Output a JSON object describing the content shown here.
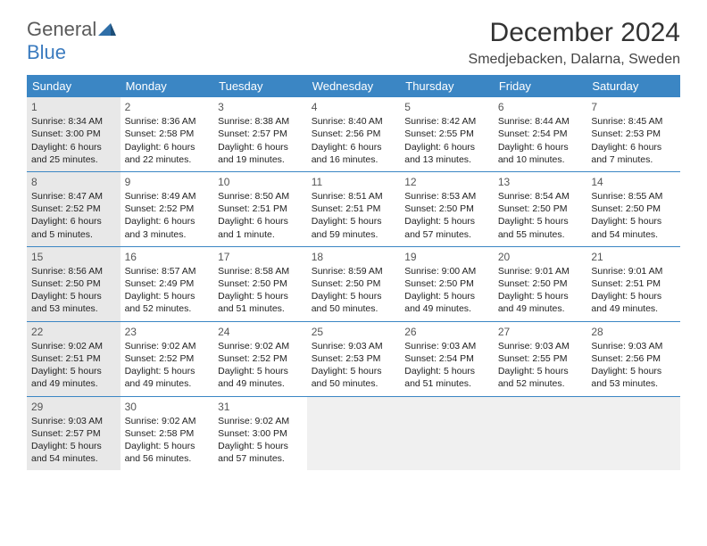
{
  "logo": {
    "part1": "General",
    "part2": "Blue"
  },
  "title": "December 2024",
  "subtitle": "Smedjebacken, Dalarna, Sweden",
  "colors": {
    "header_bg": "#3b86c4",
    "header_fg": "#ffffff",
    "logo_grey": "#5a5a5a",
    "logo_blue": "#3b7bbf",
    "grid_line": "#3b86c4",
    "empty_bg": "#e8e8e8"
  },
  "weekdays": [
    "Sunday",
    "Monday",
    "Tuesday",
    "Wednesday",
    "Thursday",
    "Friday",
    "Saturday"
  ],
  "weeks": [
    [
      {
        "day": "1",
        "grey": true,
        "sunrise": "Sunrise: 8:34 AM",
        "sunset": "Sunset: 3:00 PM",
        "daylight": "Daylight: 6 hours and 25 minutes."
      },
      {
        "day": "2",
        "sunrise": "Sunrise: 8:36 AM",
        "sunset": "Sunset: 2:58 PM",
        "daylight": "Daylight: 6 hours and 22 minutes."
      },
      {
        "day": "3",
        "sunrise": "Sunrise: 8:38 AM",
        "sunset": "Sunset: 2:57 PM",
        "daylight": "Daylight: 6 hours and 19 minutes."
      },
      {
        "day": "4",
        "sunrise": "Sunrise: 8:40 AM",
        "sunset": "Sunset: 2:56 PM",
        "daylight": "Daylight: 6 hours and 16 minutes."
      },
      {
        "day": "5",
        "sunrise": "Sunrise: 8:42 AM",
        "sunset": "Sunset: 2:55 PM",
        "daylight": "Daylight: 6 hours and 13 minutes."
      },
      {
        "day": "6",
        "sunrise": "Sunrise: 8:44 AM",
        "sunset": "Sunset: 2:54 PM",
        "daylight": "Daylight: 6 hours and 10 minutes."
      },
      {
        "day": "7",
        "sunrise": "Sunrise: 8:45 AM",
        "sunset": "Sunset: 2:53 PM",
        "daylight": "Daylight: 6 hours and 7 minutes."
      }
    ],
    [
      {
        "day": "8",
        "grey": true,
        "sunrise": "Sunrise: 8:47 AM",
        "sunset": "Sunset: 2:52 PM",
        "daylight": "Daylight: 6 hours and 5 minutes."
      },
      {
        "day": "9",
        "sunrise": "Sunrise: 8:49 AM",
        "sunset": "Sunset: 2:52 PM",
        "daylight": "Daylight: 6 hours and 3 minutes."
      },
      {
        "day": "10",
        "sunrise": "Sunrise: 8:50 AM",
        "sunset": "Sunset: 2:51 PM",
        "daylight": "Daylight: 6 hours and 1 minute."
      },
      {
        "day": "11",
        "sunrise": "Sunrise: 8:51 AM",
        "sunset": "Sunset: 2:51 PM",
        "daylight": "Daylight: 5 hours and 59 minutes."
      },
      {
        "day": "12",
        "sunrise": "Sunrise: 8:53 AM",
        "sunset": "Sunset: 2:50 PM",
        "daylight": "Daylight: 5 hours and 57 minutes."
      },
      {
        "day": "13",
        "sunrise": "Sunrise: 8:54 AM",
        "sunset": "Sunset: 2:50 PM",
        "daylight": "Daylight: 5 hours and 55 minutes."
      },
      {
        "day": "14",
        "sunrise": "Sunrise: 8:55 AM",
        "sunset": "Sunset: 2:50 PM",
        "daylight": "Daylight: 5 hours and 54 minutes."
      }
    ],
    [
      {
        "day": "15",
        "grey": true,
        "sunrise": "Sunrise: 8:56 AM",
        "sunset": "Sunset: 2:50 PM",
        "daylight": "Daylight: 5 hours and 53 minutes."
      },
      {
        "day": "16",
        "sunrise": "Sunrise: 8:57 AM",
        "sunset": "Sunset: 2:49 PM",
        "daylight": "Daylight: 5 hours and 52 minutes."
      },
      {
        "day": "17",
        "sunrise": "Sunrise: 8:58 AM",
        "sunset": "Sunset: 2:50 PM",
        "daylight": "Daylight: 5 hours and 51 minutes."
      },
      {
        "day": "18",
        "sunrise": "Sunrise: 8:59 AM",
        "sunset": "Sunset: 2:50 PM",
        "daylight": "Daylight: 5 hours and 50 minutes."
      },
      {
        "day": "19",
        "sunrise": "Sunrise: 9:00 AM",
        "sunset": "Sunset: 2:50 PM",
        "daylight": "Daylight: 5 hours and 49 minutes."
      },
      {
        "day": "20",
        "sunrise": "Sunrise: 9:01 AM",
        "sunset": "Sunset: 2:50 PM",
        "daylight": "Daylight: 5 hours and 49 minutes."
      },
      {
        "day": "21",
        "sunrise": "Sunrise: 9:01 AM",
        "sunset": "Sunset: 2:51 PM",
        "daylight": "Daylight: 5 hours and 49 minutes."
      }
    ],
    [
      {
        "day": "22",
        "grey": true,
        "sunrise": "Sunrise: 9:02 AM",
        "sunset": "Sunset: 2:51 PM",
        "daylight": "Daylight: 5 hours and 49 minutes."
      },
      {
        "day": "23",
        "sunrise": "Sunrise: 9:02 AM",
        "sunset": "Sunset: 2:52 PM",
        "daylight": "Daylight: 5 hours and 49 minutes."
      },
      {
        "day": "24",
        "sunrise": "Sunrise: 9:02 AM",
        "sunset": "Sunset: 2:52 PM",
        "daylight": "Daylight: 5 hours and 49 minutes."
      },
      {
        "day": "25",
        "sunrise": "Sunrise: 9:03 AM",
        "sunset": "Sunset: 2:53 PM",
        "daylight": "Daylight: 5 hours and 50 minutes."
      },
      {
        "day": "26",
        "sunrise": "Sunrise: 9:03 AM",
        "sunset": "Sunset: 2:54 PM",
        "daylight": "Daylight: 5 hours and 51 minutes."
      },
      {
        "day": "27",
        "sunrise": "Sunrise: 9:03 AM",
        "sunset": "Sunset: 2:55 PM",
        "daylight": "Daylight: 5 hours and 52 minutes."
      },
      {
        "day": "28",
        "sunrise": "Sunrise: 9:03 AM",
        "sunset": "Sunset: 2:56 PM",
        "daylight": "Daylight: 5 hours and 53 minutes."
      }
    ],
    [
      {
        "day": "29",
        "grey": true,
        "sunrise": "Sunrise: 9:03 AM",
        "sunset": "Sunset: 2:57 PM",
        "daylight": "Daylight: 5 hours and 54 minutes."
      },
      {
        "day": "30",
        "sunrise": "Sunrise: 9:02 AM",
        "sunset": "Sunset: 2:58 PM",
        "daylight": "Daylight: 5 hours and 56 minutes."
      },
      {
        "day": "31",
        "sunrise": "Sunrise: 9:02 AM",
        "sunset": "Sunset: 3:00 PM",
        "daylight": "Daylight: 5 hours and 57 minutes."
      },
      {
        "empty": true
      },
      {
        "empty": true
      },
      {
        "empty": true
      },
      {
        "empty": true
      }
    ]
  ]
}
